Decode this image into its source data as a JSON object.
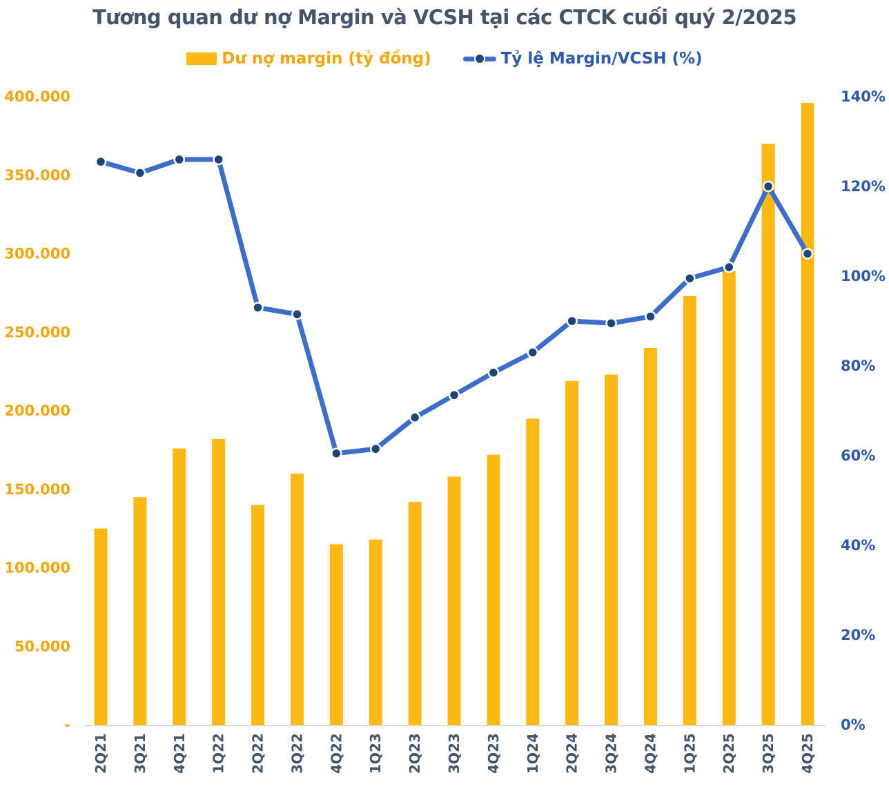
{
  "title": "Tương quan dư nợ Margin và VCSH tại các CTCK cuối quý 2/2025",
  "legend": {
    "bar_label": "Dư nợ margin (tỷ đồng)",
    "line_label": "Tỷ lệ Margin/VCSH (%)"
  },
  "colors": {
    "bar": "#FDB913",
    "bar_text": "#F2A60C",
    "line": "#3B6DC9",
    "marker": "#1F4577",
    "blue_text": "#2E58A8",
    "title_text": "#44546A",
    "x_text": "#44546A",
    "axis_line": "#D9D9D9"
  },
  "chart_data": {
    "type": "bar",
    "subtype": "combo-bar-line",
    "title": "Tương quan dư nợ Margin và VCSH tại các CTCK cuối quý 2/2025",
    "categories": [
      "2Q21",
      "3Q21",
      "4Q21",
      "1Q22",
      "2Q22",
      "3Q22",
      "4Q22",
      "1Q23",
      "2Q23",
      "3Q23",
      "4Q23",
      "1Q24",
      "2Q24",
      "3Q24",
      "4Q24",
      "1Q25",
      "2Q25",
      "3Q25",
      "4Q25"
    ],
    "series": [
      {
        "name": "Dư nợ margin (tỷ đồng)",
        "type": "bar",
        "axis": "left",
        "values": [
          125000,
          145000,
          176000,
          182000,
          140000,
          160000,
          115000,
          118000,
          142000,
          158000,
          172000,
          195000,
          219000,
          223000,
          240000,
          273000,
          289000,
          370000,
          396000
        ]
      },
      {
        "name": "Tỷ lệ Margin/VCSH (%)",
        "type": "line",
        "axis": "right",
        "values": [
          125.5,
          123,
          126,
          126,
          93,
          91.5,
          60.5,
          61.5,
          68.5,
          73.5,
          78.5,
          83,
          90,
          89.5,
          91,
          99.5,
          102,
          120,
          105
        ]
      }
    ],
    "left_axis": {
      "min": 0,
      "max": 400000,
      "labels": [
        "400.000",
        "350.000",
        "300.000",
        "250.000",
        "200.000",
        "150.000",
        "100.000",
        "50.000",
        "-"
      ],
      "values": [
        400000,
        350000,
        300000,
        250000,
        200000,
        150000,
        100000,
        50000,
        0
      ]
    },
    "right_axis": {
      "min": 0,
      "max": 140,
      "labels": [
        "140%",
        "120%",
        "100%",
        "80%",
        "60%",
        "40%",
        "20%",
        "0%"
      ],
      "values": [
        140,
        120,
        100,
        80,
        60,
        40,
        20,
        0
      ]
    },
    "grid": false,
    "legend_position": "top"
  }
}
